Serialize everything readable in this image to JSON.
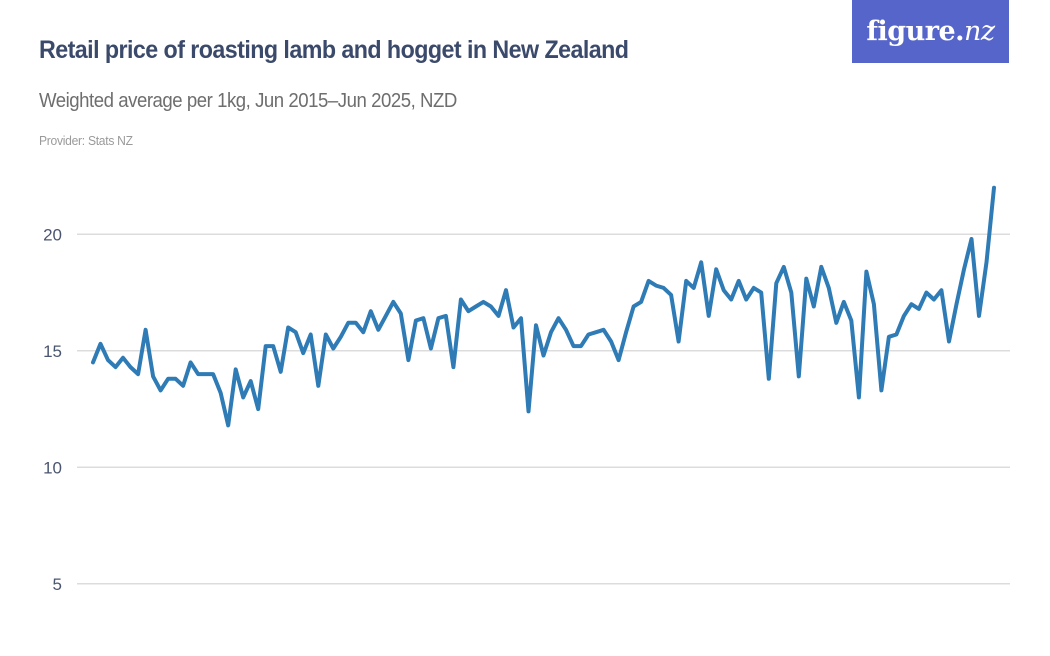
{
  "header": {
    "title": "Retail price of roasting lamb and hogget in New Zealand",
    "subtitle": "Weighted average per 1kg, Jun 2015–Jun 2025, NZD",
    "provider": "Provider: Stats NZ"
  },
  "logo": {
    "text_main": "figure.",
    "text_accent": "nz",
    "background": "#5565c9"
  },
  "colors": {
    "line": "#2e7bb5",
    "grid": "#dcdcdc",
    "title": "#3b4a6b",
    "subtitle": "#6e6e6e",
    "provider": "#9a9a9a",
    "tick": "#4a5570"
  },
  "chart_data": {
    "type": "line",
    "title": "Retail price of roasting lamb and hogget in New Zealand",
    "subtitle": "Weighted average per 1kg, Jun 2015–Jun 2025, NZD",
    "xlabel": "",
    "ylabel": "",
    "x_range": [
      "Jun 2015",
      "Jun 2025"
    ],
    "x_frequency": "monthly",
    "yticks": [
      5,
      10,
      15,
      20
    ],
    "ylim": [
      5,
      22.5
    ],
    "grid": true,
    "legend": "none",
    "series": [
      {
        "name": "Roasting lamb and hogget (NZD per 1kg)",
        "values": [
          14.5,
          15.3,
          14.6,
          14.3,
          14.7,
          14.3,
          14.0,
          15.9,
          13.9,
          13.3,
          13.8,
          13.8,
          13.5,
          14.5,
          14.0,
          14.0,
          14.0,
          13.2,
          11.8,
          14.2,
          13.0,
          13.7,
          12.5,
          15.2,
          15.2,
          14.1,
          16.0,
          15.8,
          14.9,
          15.7,
          13.5,
          15.7,
          15.1,
          15.6,
          16.2,
          16.2,
          15.8,
          16.7,
          15.9,
          16.5,
          17.1,
          16.6,
          14.6,
          16.3,
          16.4,
          15.1,
          16.4,
          16.5,
          14.3,
          17.2,
          16.7,
          16.9,
          17.1,
          16.9,
          16.5,
          17.6,
          16.0,
          16.4,
          12.4,
          16.1,
          14.8,
          15.8,
          16.4,
          15.9,
          15.2,
          15.2,
          15.7,
          15.8,
          15.9,
          15.4,
          14.6,
          15.8,
          16.9,
          17.1,
          18.0,
          17.8,
          17.7,
          17.4,
          15.4,
          18.0,
          17.7,
          18.8,
          16.5,
          18.5,
          17.6,
          17.2,
          18.0,
          17.2,
          17.7,
          17.5,
          13.8,
          17.9,
          18.6,
          17.5,
          13.9,
          18.1,
          16.9,
          18.6,
          17.7,
          16.2,
          17.1,
          16.3,
          13.0,
          18.4,
          17.0,
          13.3,
          15.6,
          15.7,
          16.5,
          17.0,
          16.8,
          17.5,
          17.2,
          17.6,
          15.4,
          17.0,
          18.5,
          19.8,
          16.5,
          18.8,
          22.0
        ]
      }
    ]
  }
}
